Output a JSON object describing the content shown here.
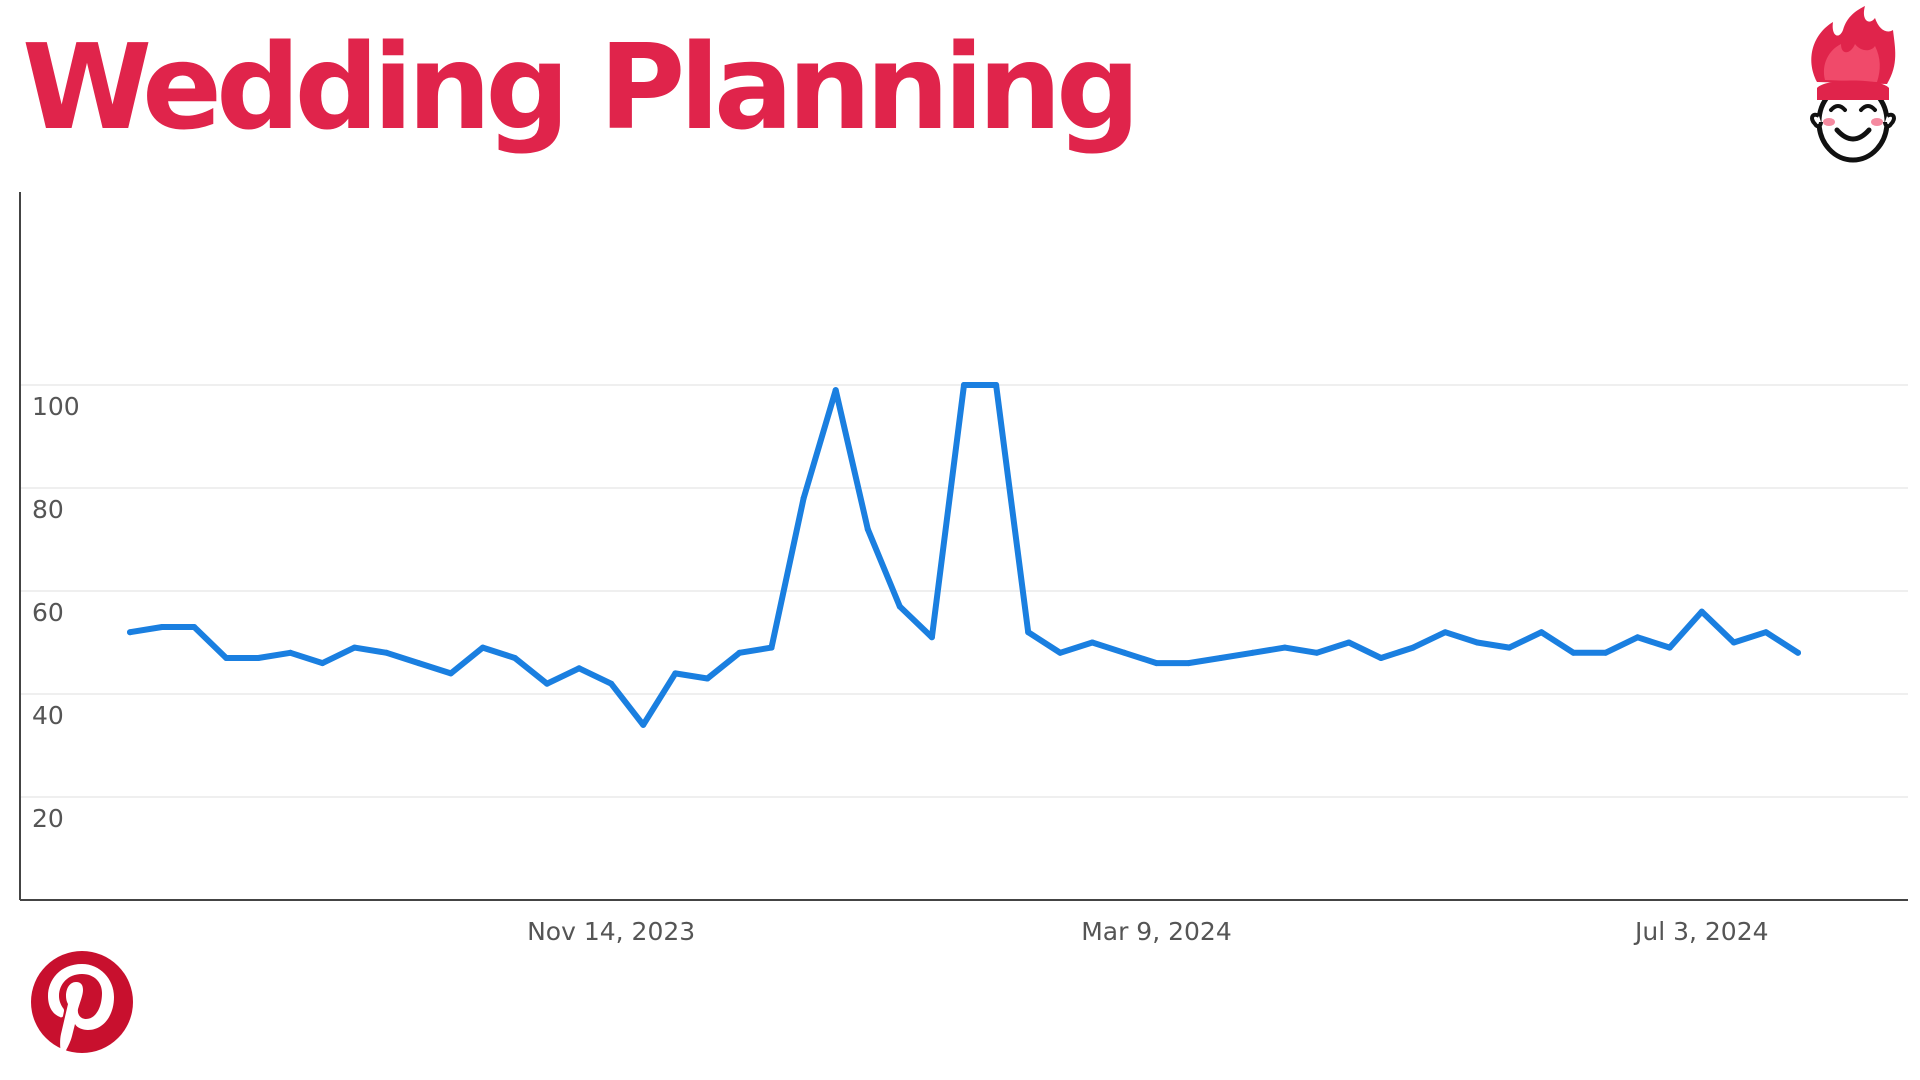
{
  "header": {
    "title": "Wedding Planning"
  },
  "colors": {
    "title": "#e0244b",
    "line": "#1a7fe0",
    "grid": "#efefef",
    "axis": "#444444",
    "pinterest": "#c8102e"
  },
  "icons": {
    "mascot": "flame-hair-mascot-icon",
    "brand": "pinterest-logo-icon"
  },
  "chart_data": {
    "type": "line",
    "title": "Wedding Planning",
    "xlabel": "",
    "ylabel": "",
    "ylim": [
      0,
      110
    ],
    "y_ticks": [
      20,
      40,
      60,
      80,
      100
    ],
    "x_ticks": [
      {
        "label": "Nov 14, 2023",
        "index": 15
      },
      {
        "label": "Mar 9, 2024",
        "index": 32
      },
      {
        "label": "Jul 3, 2024",
        "index": 49
      }
    ],
    "grid": true,
    "legend": "none",
    "series": [
      {
        "values": [
          52,
          53,
          53,
          47,
          47,
          48,
          46,
          49,
          48,
          46,
          44,
          49,
          47,
          42,
          45,
          42,
          34,
          44,
          43,
          48,
          49,
          78,
          99,
          72,
          57,
          51,
          100,
          100,
          52,
          48,
          50,
          48,
          46,
          46,
          47,
          48,
          49,
          48,
          50,
          47,
          49,
          52,
          50,
          49,
          52,
          48,
          48,
          51,
          49,
          56,
          50,
          52,
          48
        ]
      }
    ]
  }
}
